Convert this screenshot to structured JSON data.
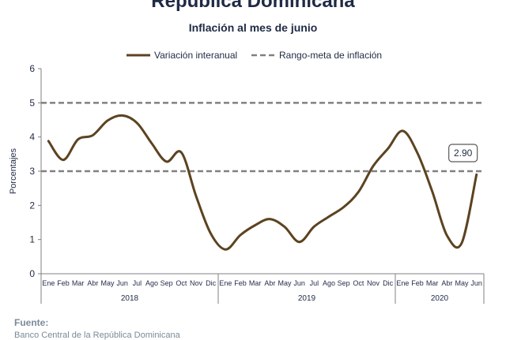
{
  "header": {
    "title": "República Dominicana",
    "subtitle": "Inflación al mes de junio"
  },
  "footer": {
    "source_label": "Fuente:",
    "source_text": "Banco Central de la República Dominicana"
  },
  "chart_data": {
    "type": "line",
    "title": "Inflación al mes de junio",
    "ylabel": "Porcentajes",
    "ylim": [
      0,
      6
    ],
    "yticks": [
      0,
      1,
      2,
      3,
      4,
      5,
      6
    ],
    "grid": false,
    "legend_position": "top",
    "years": [
      {
        "label": "2018",
        "start": 0,
        "end": 11
      },
      {
        "label": "2019",
        "start": 12,
        "end": 23
      },
      {
        "label": "2020",
        "start": 24,
        "end": 29
      }
    ],
    "categories": [
      "Ene",
      "Feb",
      "Mar",
      "Abr",
      "May",
      "Jun",
      "Jul",
      "Ago",
      "Sep",
      "Oct",
      "Nov",
      "Dic",
      "Ene",
      "Feb",
      "Mar",
      "Abr",
      "May",
      "Jun",
      "Jul",
      "Ago",
      "Sep",
      "Oct",
      "Nov",
      "Dic",
      "Ene",
      "Feb",
      "Mar",
      "Abr",
      "May",
      "Jun"
    ],
    "series": [
      {
        "name": "Variación interanual",
        "color": "#5c4320",
        "style": "solid",
        "values": [
          3.88,
          3.33,
          3.93,
          4.05,
          4.48,
          4.63,
          4.41,
          3.81,
          3.28,
          3.55,
          2.27,
          1.17,
          0.71,
          1.13,
          1.42,
          1.6,
          1.37,
          0.93,
          1.38,
          1.67,
          1.95,
          2.39,
          3.15,
          3.66,
          4.18,
          3.53,
          2.41,
          1.12,
          0.9,
          2.9
        ]
      },
      {
        "name": "Rango-meta de inflación",
        "color": "#808080",
        "style": "dashed",
        "lines": [
          3,
          5
        ]
      }
    ],
    "annotation": {
      "index": 29,
      "text": "2.90"
    }
  }
}
